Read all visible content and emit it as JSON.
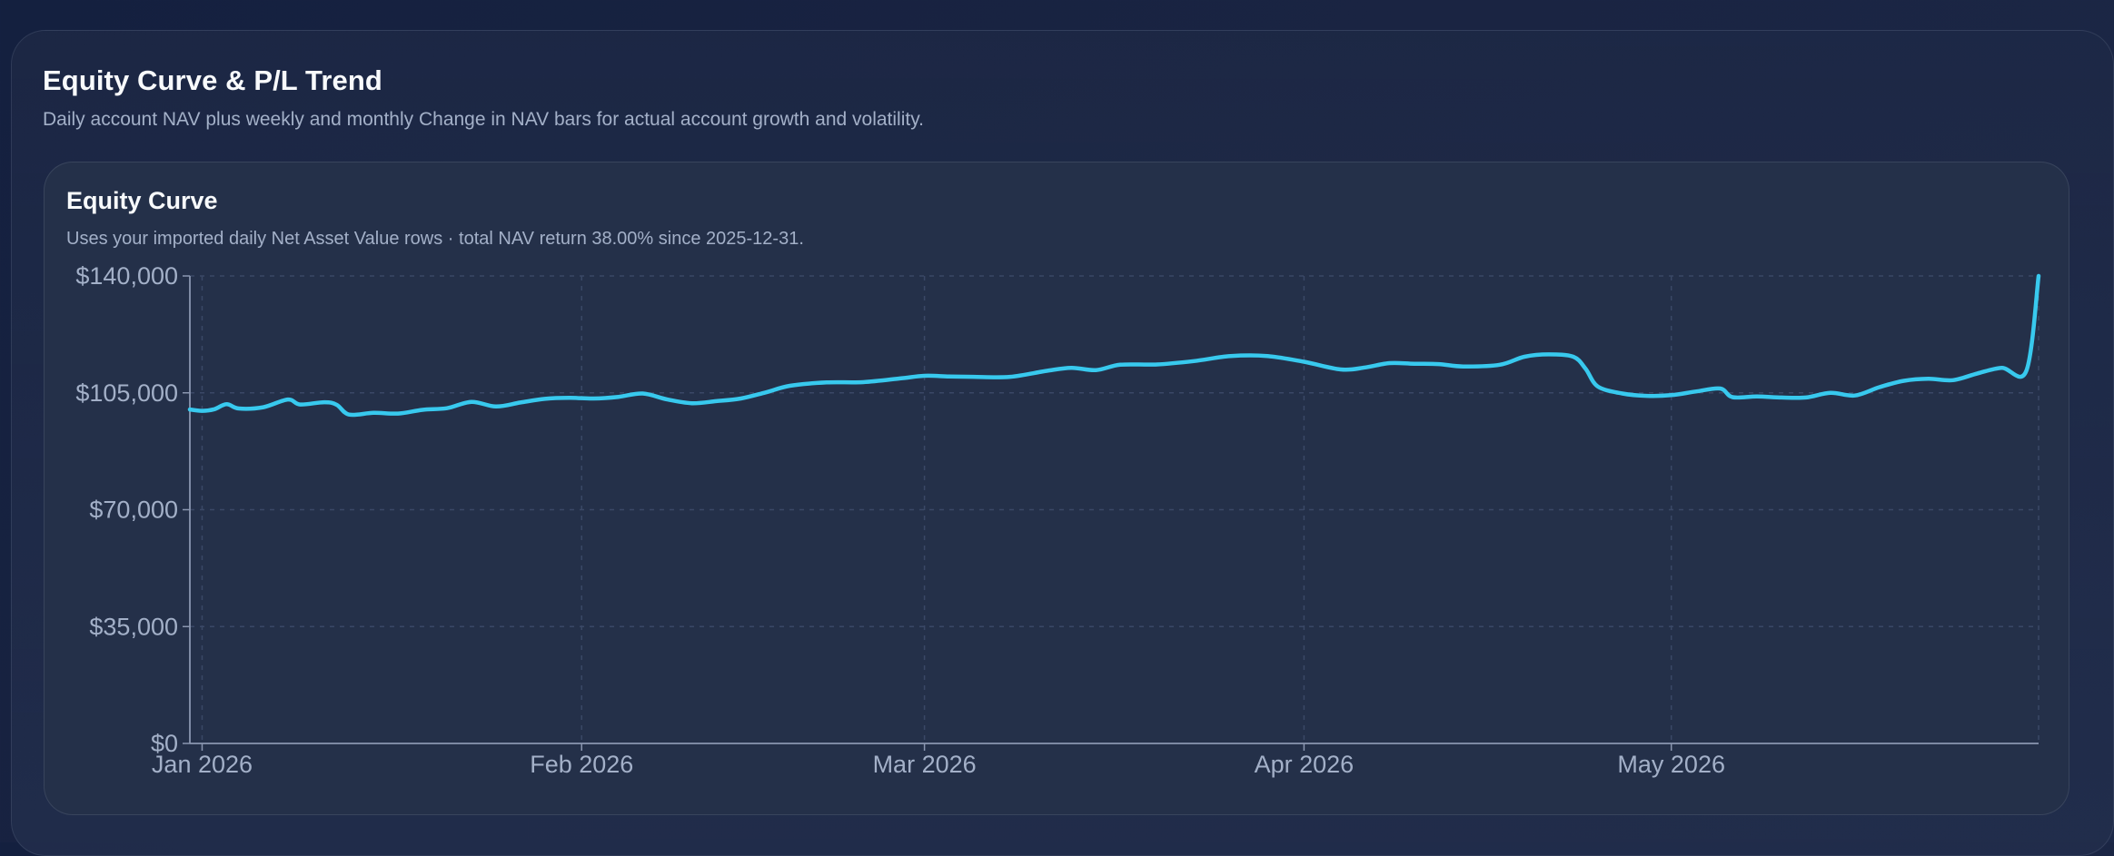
{
  "section": {
    "title": "Equity Curve & P/L Trend",
    "subtitle": "Daily account NAV plus weekly and monthly Change in NAV bars for actual account growth and volatility."
  },
  "chart_card": {
    "title": "Equity Curve",
    "subtitle": "Uses your imported daily Net Asset Value rows · total NAV return 38.00% since 2025-12-31."
  },
  "colors": {
    "line": "#38c9ee",
    "grid": "#3a4866",
    "axis": "#8a96b0",
    "tick_text": "#a3b0c8"
  },
  "chart_data": {
    "type": "line",
    "title": "",
    "xlabel": "",
    "ylabel": "",
    "ylim": [
      0,
      140000
    ],
    "y_ticks": [
      {
        "value": 0,
        "label": "$0"
      },
      {
        "value": 35000,
        "label": "$35,000"
      },
      {
        "value": 70000,
        "label": "$70,000"
      },
      {
        "value": 105000,
        "label": "$105,000"
      },
      {
        "value": 140000,
        "label": "$140,000"
      }
    ],
    "x_range": [
      "2025-12-31",
      "2026-05-31"
    ],
    "x_ticks": [
      {
        "date": "2026-01-01",
        "label": "Jan 2026"
      },
      {
        "date": "2026-02-01",
        "label": "Feb 2026"
      },
      {
        "date": "2026-03-01",
        "label": "Mar 2026"
      },
      {
        "date": "2026-04-01",
        "label": "Apr 2026"
      },
      {
        "date": "2026-05-01",
        "label": "May 2026"
      }
    ],
    "grid": true,
    "legend": "none",
    "series": [
      {
        "points": [
          [
            "2025-12-31",
            100000
          ],
          [
            "2026-01-01",
            99600
          ],
          [
            "2026-01-02",
            100100
          ],
          [
            "2026-01-03",
            101600
          ],
          [
            "2026-01-04",
            100300
          ],
          [
            "2026-01-06",
            100700
          ],
          [
            "2026-01-08",
            103000
          ],
          [
            "2026-01-09",
            101500
          ],
          [
            "2026-01-11",
            102200
          ],
          [
            "2026-01-12",
            101400
          ],
          [
            "2026-01-13",
            98500
          ],
          [
            "2026-01-15",
            99000
          ],
          [
            "2026-01-17",
            98800
          ],
          [
            "2026-01-19",
            99900
          ],
          [
            "2026-01-21",
            100400
          ],
          [
            "2026-01-23",
            102300
          ],
          [
            "2026-01-25",
            100900
          ],
          [
            "2026-01-27",
            102100
          ],
          [
            "2026-01-29",
            103200
          ],
          [
            "2026-01-31",
            103500
          ],
          [
            "2026-02-02",
            103300
          ],
          [
            "2026-02-04",
            103800
          ],
          [
            "2026-02-06",
            104800
          ],
          [
            "2026-02-08",
            103000
          ],
          [
            "2026-02-10",
            101900
          ],
          [
            "2026-02-12",
            102500
          ],
          [
            "2026-02-14",
            103300
          ],
          [
            "2026-02-16",
            105100
          ],
          [
            "2026-02-18",
            107100
          ],
          [
            "2026-02-21",
            108100
          ],
          [
            "2026-02-24",
            108200
          ],
          [
            "2026-02-27",
            109300
          ],
          [
            "2026-03-01",
            110100
          ],
          [
            "2026-03-03",
            109900
          ],
          [
            "2026-03-05",
            109800
          ],
          [
            "2026-03-08",
            109800
          ],
          [
            "2026-03-11",
            111600
          ],
          [
            "2026-03-13",
            112500
          ],
          [
            "2026-03-15",
            111800
          ],
          [
            "2026-03-17",
            113400
          ],
          [
            "2026-03-20",
            113500
          ],
          [
            "2026-03-23",
            114500
          ],
          [
            "2026-03-26",
            116000
          ],
          [
            "2026-03-29",
            116000
          ],
          [
            "2026-04-01",
            114300
          ],
          [
            "2026-04-04",
            112000
          ],
          [
            "2026-04-06",
            112600
          ],
          [
            "2026-04-08",
            113900
          ],
          [
            "2026-04-10",
            113700
          ],
          [
            "2026-04-12",
            113600
          ],
          [
            "2026-04-14",
            112900
          ],
          [
            "2026-04-17",
            113400
          ],
          [
            "2026-04-19",
            115800
          ],
          [
            "2026-04-21",
            116500
          ],
          [
            "2026-04-23",
            115800
          ],
          [
            "2026-04-24",
            112200
          ],
          [
            "2026-04-25",
            106900
          ],
          [
            "2026-04-27",
            104800
          ],
          [
            "2026-04-29",
            104100
          ],
          [
            "2026-05-01",
            104300
          ],
          [
            "2026-05-03",
            105400
          ],
          [
            "2026-05-05",
            106300
          ],
          [
            "2026-05-06",
            103700
          ],
          [
            "2026-05-08",
            103900
          ],
          [
            "2026-05-10",
            103600
          ],
          [
            "2026-05-12",
            103600
          ],
          [
            "2026-05-14",
            105000
          ],
          [
            "2026-05-16",
            104200
          ],
          [
            "2026-05-18",
            106700
          ],
          [
            "2026-05-20",
            108600
          ],
          [
            "2026-05-22",
            109200
          ],
          [
            "2026-05-24",
            108800
          ],
          [
            "2026-05-26",
            110800
          ],
          [
            "2026-05-28",
            112500
          ],
          [
            "2026-05-30",
            111600
          ],
          [
            "2026-05-31",
            140000
          ]
        ]
      }
    ]
  }
}
